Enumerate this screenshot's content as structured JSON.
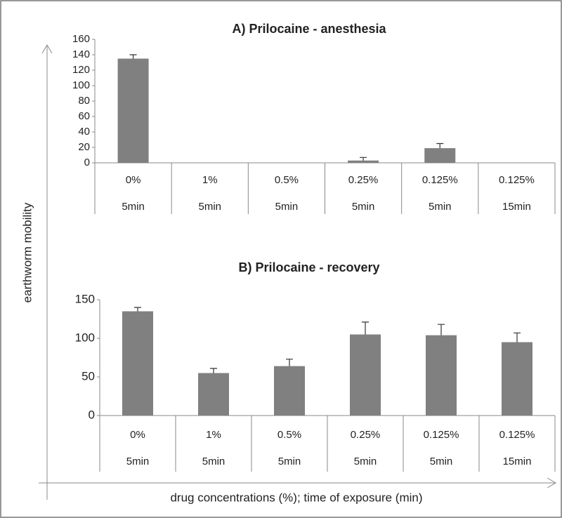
{
  "ylabel": "earthworm  mobility",
  "xlabel": "drug concentrations (%);  time of exposure  (min)",
  "chart_data": [
    {
      "type": "bar",
      "title": "A)    Prilocaine - anesthesia",
      "categories": [
        [
          "0%",
          "5min"
        ],
        [
          "1%",
          "5min"
        ],
        [
          "0.5%",
          "5min"
        ],
        [
          "0.25%",
          "5min"
        ],
        [
          "0.125%",
          "5min"
        ],
        [
          "0.125%",
          "15min"
        ]
      ],
      "values": [
        135,
        0,
        0,
        3,
        19,
        0
      ],
      "errors": [
        5,
        null,
        null,
        4,
        6,
        null
      ],
      "color": "#808080",
      "ylim": [
        0,
        160
      ],
      "yticks": [
        0,
        20,
        40,
        60,
        80,
        100,
        120,
        140,
        160
      ]
    },
    {
      "type": "bar",
      "title": "B)    Prilocaine - recovery",
      "categories": [
        [
          "0%",
          "5min"
        ],
        [
          "1%",
          "5min"
        ],
        [
          "0.5%",
          "5min"
        ],
        [
          "0.25%",
          "5min"
        ],
        [
          "0.125%",
          "5min"
        ],
        [
          "0.125%",
          "15min"
        ]
      ],
      "values": [
        135,
        55,
        64,
        105,
        104,
        95
      ],
      "errors": [
        5,
        6,
        9,
        16,
        14,
        12
      ],
      "color": "#808080",
      "ylim": [
        0,
        150
      ],
      "yticks": [
        0,
        50,
        100,
        150
      ]
    }
  ]
}
